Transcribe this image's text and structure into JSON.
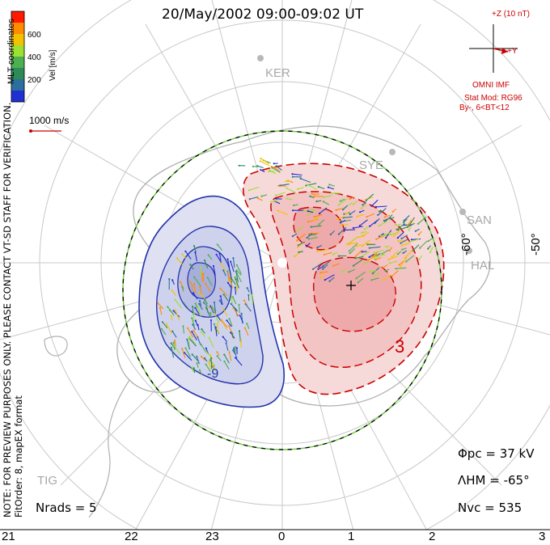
{
  "title": "20/May/2002 09:00-09:02 UT",
  "imf": {
    "z_label": "+Z (10 nT)",
    "y_label": "+Y",
    "source": "OMNI IMF"
  },
  "stat_model": {
    "line1": "Stat Mod: RG96",
    "line2": "By-, 6<BT<12"
  },
  "colorbar": {
    "title": "Vel [m/s]",
    "ticks": [
      "600",
      "400",
      "200"
    ],
    "colors": [
      "#ff1a00",
      "#ff8c00",
      "#f2c200",
      "#9be032",
      "#4caf50",
      "#2e8b57",
      "#2b6f9e",
      "#1f2fd1"
    ]
  },
  "coordinates_label": "MLT coordinates",
  "reference_vector": "1000 m/s",
  "preview_note": "NOTE: FOR PREVIEW PURPOSES ONLY. PLEASE CONTACT VT-SD STAFF FOR VERIFICATION.",
  "fit_order": "FitOrder: 8, mapEX format",
  "sites": [
    "KER",
    "SYE",
    "SAN",
    "HAL",
    "TIG"
  ],
  "lat_labels": [
    "-60°",
    "-50°"
  ],
  "mlt_labels": [
    "21",
    "22",
    "23",
    "0",
    "1",
    "2",
    "3"
  ],
  "contour_labels": {
    "neg": "-9",
    "pos": "3"
  },
  "stats": {
    "phi_label": "Φpc",
    "phi_value": "= 37 kV",
    "lambda_label": "ΛHM",
    "lambda_value": "= -65°",
    "nvc_label": "Nvc",
    "nvc_value": "= 535",
    "nrads_label": "Nrads",
    "nrads_value": "= 5"
  },
  "colors": {
    "negative_cell": "#2233aa",
    "positive_cell": "#cc0000",
    "boundary_green": "#66cc33",
    "grid": "#c8c8c8"
  }
}
